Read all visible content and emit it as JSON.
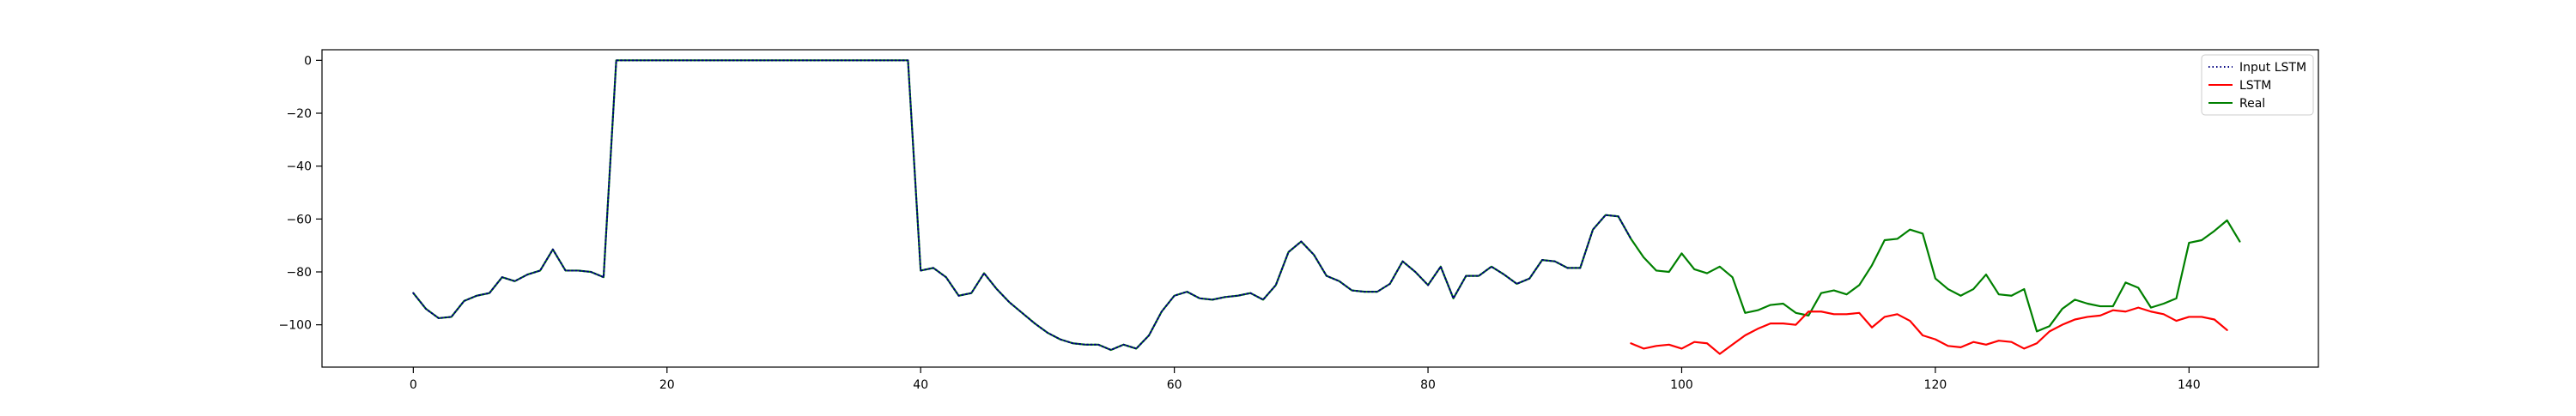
{
  "chart_data": {
    "type": "line",
    "title": "",
    "xlabel": "",
    "ylabel": "",
    "xlim": [
      -7.2,
      150.2
    ],
    "ylim": [
      -116,
      4
    ],
    "x_ticks": [
      0,
      20,
      40,
      60,
      80,
      100,
      120,
      140
    ],
    "y_ticks": [
      0,
      -20,
      -40,
      -60,
      -80,
      -100
    ],
    "grid": false,
    "legend_position": "top-right",
    "series": [
      {
        "name": "Input LSTM",
        "color": "#000080",
        "style": "dotted",
        "x_start": 0,
        "values": [
          -88,
          -94,
          -97.5,
          -97,
          -91,
          -89,
          -88,
          -82,
          -83.5,
          -81,
          -79.5,
          -71.5,
          -79.5,
          -79.5,
          -80,
          -82,
          0,
          0,
          0,
          0,
          0,
          0,
          0,
          0,
          0,
          0,
          0,
          0,
          0,
          0,
          0,
          0,
          0,
          0,
          0,
          0,
          0,
          0,
          0,
          0,
          -79.5,
          -78.5,
          -82,
          -89,
          -88,
          -80.5,
          -86.5,
          -91.5,
          -95.5,
          -99.5,
          -103,
          -105.5,
          -107,
          -107.5,
          -107.5,
          -109.5,
          -107.5,
          -109,
          -104,
          -95,
          -89,
          -87.5,
          -90,
          -90.5,
          -89.5,
          -89,
          -88,
          -90.5,
          -85,
          -72.5,
          -68.5,
          -73.5,
          -81.5,
          -83.5,
          -87,
          -87.5,
          -87.5,
          -84.5,
          -76,
          -80,
          -85,
          -78,
          -90,
          -81.5,
          -81.5,
          -78,
          -81,
          -84.5,
          -82.5,
          -75.5,
          -76,
          -78.5,
          -78.5,
          -64,
          -58.5,
          -59,
          -67.5
        ]
      },
      {
        "name": "LSTM",
        "color": "#ff0000",
        "style": "solid",
        "x_start": 96,
        "values": [
          -107,
          -109,
          -108,
          -107.5,
          -109,
          -106.5,
          -107,
          -111,
          -107.5,
          -104,
          -101.5,
          -99.5,
          -99.5,
          -100,
          -95,
          -95,
          -96,
          -96,
          -95.5,
          -101,
          -97,
          -96,
          -98.5,
          -104,
          -105.5,
          -108,
          -108.5,
          -106.5,
          -107.5,
          -106,
          -106.5,
          -109,
          -107,
          -102.5,
          -100,
          -98,
          -97,
          -96.5,
          -94.5,
          -95,
          -93.5,
          -95,
          -96,
          -98.5,
          -97,
          -97,
          -98,
          -102
        ]
      },
      {
        "name": "Real",
        "color": "#008000",
        "style": "solid",
        "x_start": 0,
        "values": [
          -88,
          -94,
          -97.5,
          -97,
          -91,
          -89,
          -88,
          -82,
          -83.5,
          -81,
          -79.5,
          -71.5,
          -79.5,
          -79.5,
          -80,
          -82,
          0,
          0,
          0,
          0,
          0,
          0,
          0,
          0,
          0,
          0,
          0,
          0,
          0,
          0,
          0,
          0,
          0,
          0,
          0,
          0,
          0,
          0,
          0,
          0,
          -79.5,
          -78.5,
          -82,
          -89,
          -88,
          -80.5,
          -86.5,
          -91.5,
          -95.5,
          -99.5,
          -103,
          -105.5,
          -107,
          -107.5,
          -107.5,
          -109.5,
          -107.5,
          -109,
          -104,
          -95,
          -89,
          -87.5,
          -90,
          -90.5,
          -89.5,
          -89,
          -88,
          -90.5,
          -85,
          -72.5,
          -68.5,
          -73.5,
          -81.5,
          -83.5,
          -87,
          -87.5,
          -87.5,
          -84.5,
          -76,
          -80,
          -85,
          -78,
          -90,
          -81.5,
          -81.5,
          -78,
          -81,
          -84.5,
          -82.5,
          -75.5,
          -76,
          -78.5,
          -78.5,
          -64,
          -58.5,
          -59,
          -67.5,
          -74.5,
          -79.5,
          -80,
          -73,
          -79,
          -80.5,
          -78,
          -82,
          -95.5,
          -94.5,
          -92.5,
          -92,
          -95.5,
          -96.5,
          -88,
          -87,
          -88.5,
          -85,
          -77.5,
          -68,
          -67.5,
          -64,
          -65.5,
          -82.5,
          -86.5,
          -89,
          -86.5,
          -81,
          -88.5,
          -89,
          -86.5,
          -102.5,
          -100.5,
          -94,
          -90.5,
          -92,
          -93,
          -93,
          -84,
          -86,
          -93.5,
          -92,
          -90,
          -69,
          -68,
          -64.5,
          -60.5,
          -68.5
        ]
      }
    ]
  }
}
